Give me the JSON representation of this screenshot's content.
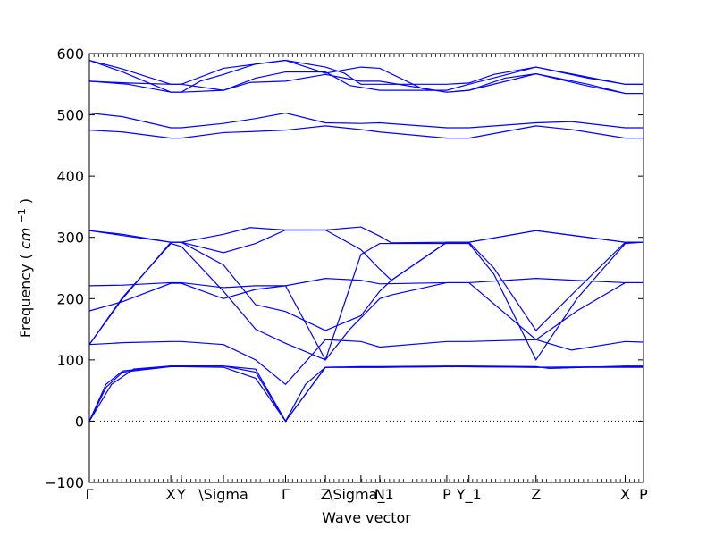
{
  "chart_data": {
    "type": "line",
    "xlabel": "Wave vector",
    "ylabel": "Frequency",
    "ylabel_unit": "cm",
    "ylabel_exponent": "−1",
    "ylim": [
      -100,
      600
    ],
    "xlim": [
      0,
      1
    ],
    "yticks": [
      -100,
      0,
      100,
      200,
      300,
      400,
      500,
      600
    ],
    "qpoints": [
      {
        "label": "Γ",
        "x": 0.0
      },
      {
        "label": "X",
        "x": 0.147
      },
      {
        "label": "Y",
        "x": 0.166
      },
      {
        "label": "\\Sigma",
        "x": 0.242
      },
      {
        "label": "Γ",
        "x": 0.354
      },
      {
        "label": "Z",
        "x": 0.426
      },
      {
        "label": "\\Sigma_1",
        "x": 0.49
      },
      {
        "label": "N",
        "x": 0.524
      },
      {
        "label": "P",
        "x": 0.645
      },
      {
        "label": "Y_1",
        "x": 0.685
      },
      {
        "label": "Z",
        "x": 0.806
      },
      {
        "label": "X",
        "x": 0.967
      },
      {
        "label": "P",
        "x": 1.0
      }
    ],
    "zero_line": true,
    "grid": false,
    "line_color": "#0000ff",
    "series": [
      {
        "points": [
          [
            0,
            589
          ],
          [
            0.06,
            575
          ],
          [
            0.147,
            550
          ],
          [
            0.166,
            550
          ],
          [
            0.242,
            576
          ],
          [
            0.354,
            589
          ],
          [
            0.426,
            578
          ],
          [
            0.46,
            568
          ],
          [
            0.49,
            550
          ],
          [
            0.524,
            550
          ],
          [
            0.645,
            550
          ],
          [
            0.685,
            552
          ],
          [
            0.73,
            566
          ],
          [
            0.806,
            578
          ],
          [
            0.9,
            560
          ],
          [
            0.967,
            550
          ],
          [
            1,
            550
          ]
        ]
      },
      {
        "points": [
          [
            0,
            589
          ],
          [
            0.06,
            570
          ],
          [
            0.147,
            537
          ],
          [
            0.166,
            537
          ],
          [
            0.2,
            555
          ],
          [
            0.242,
            566
          ],
          [
            0.3,
            583
          ],
          [
            0.354,
            589
          ],
          [
            0.426,
            568
          ],
          [
            0.49,
            578
          ],
          [
            0.524,
            576
          ],
          [
            0.6,
            543
          ],
          [
            0.645,
            537
          ],
          [
            0.685,
            540
          ],
          [
            0.75,
            560
          ],
          [
            0.806,
            567
          ],
          [
            0.9,
            550
          ],
          [
            0.967,
            535
          ],
          [
            1,
            535
          ]
        ]
      },
      {
        "points": [
          [
            0,
            555
          ],
          [
            0.07,
            550
          ],
          [
            0.147,
            537
          ],
          [
            0.166,
            537
          ],
          [
            0.242,
            540
          ],
          [
            0.29,
            553
          ],
          [
            0.354,
            555
          ],
          [
            0.426,
            566
          ],
          [
            0.49,
            555
          ],
          [
            0.524,
            555
          ],
          [
            0.645,
            537
          ],
          [
            0.685,
            540
          ],
          [
            0.806,
            567
          ],
          [
            0.9,
            547
          ],
          [
            0.967,
            535
          ],
          [
            1,
            535
          ]
        ]
      },
      {
        "points": [
          [
            0,
            555
          ],
          [
            0.07,
            552
          ],
          [
            0.147,
            550
          ],
          [
            0.166,
            550
          ],
          [
            0.242,
            540
          ],
          [
            0.3,
            560
          ],
          [
            0.354,
            570
          ],
          [
            0.426,
            570
          ],
          [
            0.47,
            548
          ],
          [
            0.524,
            540
          ],
          [
            0.645,
            540
          ],
          [
            0.685,
            550
          ],
          [
            0.806,
            578
          ],
          [
            0.967,
            550
          ],
          [
            1,
            550
          ]
        ]
      },
      {
        "points": [
          [
            0,
            503
          ],
          [
            0.06,
            497
          ],
          [
            0.147,
            479
          ],
          [
            0.166,
            479
          ],
          [
            0.242,
            486
          ],
          [
            0.3,
            494
          ],
          [
            0.354,
            503
          ],
          [
            0.426,
            487
          ],
          [
            0.49,
            486
          ],
          [
            0.524,
            487
          ],
          [
            0.645,
            479
          ],
          [
            0.685,
            479
          ],
          [
            0.806,
            487
          ],
          [
            0.87,
            489
          ],
          [
            0.967,
            479
          ],
          [
            1,
            479
          ]
        ]
      },
      {
        "points": [
          [
            0,
            475
          ],
          [
            0.06,
            472
          ],
          [
            0.147,
            462
          ],
          [
            0.166,
            462
          ],
          [
            0.242,
            471
          ],
          [
            0.3,
            473
          ],
          [
            0.354,
            475
          ],
          [
            0.426,
            482
          ],
          [
            0.49,
            476
          ],
          [
            0.524,
            472
          ],
          [
            0.645,
            462
          ],
          [
            0.685,
            462
          ],
          [
            0.806,
            482
          ],
          [
            0.87,
            476
          ],
          [
            0.967,
            462
          ],
          [
            1,
            462
          ]
        ]
      },
      {
        "points": [
          [
            0,
            311
          ],
          [
            0.06,
            305
          ],
          [
            0.147,
            292
          ],
          [
            0.166,
            292
          ],
          [
            0.242,
            305
          ],
          [
            0.29,
            316
          ],
          [
            0.354,
            312
          ],
          [
            0.426,
            312
          ],
          [
            0.49,
            317
          ],
          [
            0.524,
            302
          ],
          [
            0.545,
            291
          ],
          [
            0.645,
            292
          ],
          [
            0.685,
            292
          ],
          [
            0.806,
            311
          ],
          [
            0.967,
            292
          ],
          [
            1,
            292
          ]
        ]
      },
      {
        "points": [
          [
            0,
            311
          ],
          [
            0.06,
            303
          ],
          [
            0.147,
            292
          ],
          [
            0.166,
            292
          ],
          [
            0.242,
            275
          ],
          [
            0.3,
            290
          ],
          [
            0.354,
            312
          ],
          [
            0.426,
            312
          ],
          [
            0.49,
            280
          ],
          [
            0.524,
            248
          ],
          [
            0.545,
            230
          ],
          [
            0.645,
            292
          ],
          [
            0.685,
            292
          ],
          [
            0.806,
            311
          ],
          [
            0.967,
            292
          ],
          [
            1,
            292
          ]
        ]
      },
      {
        "points": [
          [
            0,
            125
          ],
          [
            0.06,
            200
          ],
          [
            0.147,
            292
          ],
          [
            0.166,
            292
          ],
          [
            0.242,
            255
          ],
          [
            0.3,
            190
          ],
          [
            0.354,
            179
          ],
          [
            0.426,
            148
          ],
          [
            0.49,
            172
          ],
          [
            0.524,
            212
          ],
          [
            0.545,
            230
          ],
          [
            0.645,
            292
          ],
          [
            0.685,
            292
          ],
          [
            0.73,
            250
          ],
          [
            0.806,
            148
          ],
          [
            0.88,
            215
          ],
          [
            0.967,
            292
          ],
          [
            1,
            292
          ]
        ]
      },
      {
        "points": [
          [
            0,
            125
          ],
          [
            0.06,
            202
          ],
          [
            0.147,
            290
          ],
          [
            0.166,
            285
          ],
          [
            0.242,
            212
          ],
          [
            0.3,
            150
          ],
          [
            0.354,
            127
          ],
          [
            0.426,
            100
          ],
          [
            0.49,
            272
          ],
          [
            0.524,
            290
          ],
          [
            0.645,
            290
          ],
          [
            0.685,
            290
          ],
          [
            0.73,
            240
          ],
          [
            0.806,
            100
          ],
          [
            0.88,
            200
          ],
          [
            0.967,
            290
          ],
          [
            1,
            292
          ]
        ]
      },
      {
        "points": [
          [
            0,
            221
          ],
          [
            0.06,
            222
          ],
          [
            0.147,
            226
          ],
          [
            0.166,
            226
          ],
          [
            0.242,
            218
          ],
          [
            0.3,
            221
          ],
          [
            0.354,
            221
          ],
          [
            0.426,
            233
          ],
          [
            0.49,
            230
          ],
          [
            0.524,
            224
          ],
          [
            0.645,
            226
          ],
          [
            0.685,
            226
          ],
          [
            0.806,
            233
          ],
          [
            0.967,
            226
          ],
          [
            1,
            226
          ]
        ]
      },
      {
        "points": [
          [
            0,
            180
          ],
          [
            0.06,
            195
          ],
          [
            0.147,
            225
          ],
          [
            0.166,
            225
          ],
          [
            0.242,
            200
          ],
          [
            0.3,
            215
          ],
          [
            0.354,
            221
          ],
          [
            0.426,
            100
          ],
          [
            0.47,
            150
          ],
          [
            0.524,
            200
          ],
          [
            0.545,
            206
          ],
          [
            0.645,
            226
          ],
          [
            0.685,
            226
          ],
          [
            0.806,
            133
          ],
          [
            0.88,
            180
          ],
          [
            0.967,
            226
          ],
          [
            1,
            226
          ]
        ]
      },
      {
        "points": [
          [
            0,
            125
          ],
          [
            0.06,
            128
          ],
          [
            0.147,
            130
          ],
          [
            0.166,
            130
          ],
          [
            0.242,
            125
          ],
          [
            0.3,
            100
          ],
          [
            0.354,
            60
          ],
          [
            0.426,
            133
          ],
          [
            0.49,
            130
          ],
          [
            0.524,
            121
          ],
          [
            0.645,
            130
          ],
          [
            0.685,
            130
          ],
          [
            0.806,
            133
          ],
          [
            0.87,
            116
          ],
          [
            0.967,
            130
          ],
          [
            1,
            129
          ]
        ]
      },
      {
        "points": [
          [
            0,
            0
          ],
          [
            0.03,
            60
          ],
          [
            0.06,
            82
          ],
          [
            0.147,
            90
          ],
          [
            0.166,
            90
          ],
          [
            0.242,
            90
          ],
          [
            0.3,
            85
          ],
          [
            0.354,
            0
          ],
          [
            0.426,
            88
          ],
          [
            0.49,
            89
          ],
          [
            0.524,
            89
          ],
          [
            0.645,
            90
          ],
          [
            0.685,
            90
          ],
          [
            0.806,
            89
          ],
          [
            0.83,
            86
          ],
          [
            0.967,
            90
          ],
          [
            1,
            90
          ]
        ]
      },
      {
        "points": [
          [
            0,
            0
          ],
          [
            0.03,
            55
          ],
          [
            0.06,
            80
          ],
          [
            0.147,
            89
          ],
          [
            0.166,
            89
          ],
          [
            0.242,
            88
          ],
          [
            0.3,
            70
          ],
          [
            0.354,
            0
          ],
          [
            0.426,
            88
          ],
          [
            0.49,
            88
          ],
          [
            0.524,
            88
          ],
          [
            0.645,
            89
          ],
          [
            0.685,
            89
          ],
          [
            0.806,
            88
          ],
          [
            0.967,
            89
          ],
          [
            1,
            89
          ]
        ]
      },
      {
        "points": [
          [
            0,
            0
          ],
          [
            0.04,
            60
          ],
          [
            0.08,
            85
          ],
          [
            0.147,
            90
          ],
          [
            0.242,
            90
          ],
          [
            0.3,
            80
          ],
          [
            0.354,
            0
          ],
          [
            0.39,
            60
          ],
          [
            0.426,
            88
          ],
          [
            0.524,
            88
          ],
          [
            0.645,
            89
          ],
          [
            0.806,
            88
          ],
          [
            1,
            88
          ]
        ]
      }
    ]
  }
}
